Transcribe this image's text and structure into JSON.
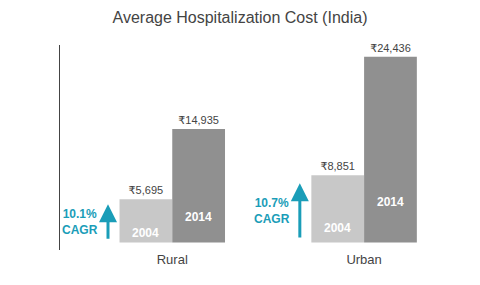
{
  "chart_data": {
    "type": "bar",
    "title": "Average Hospitalization Cost (India)",
    "categories": [
      "Rural",
      "Urban"
    ],
    "series": [
      {
        "name": "2004",
        "color": "#c8c8c8",
        "values": [
          5695,
          8851
        ],
        "value_labels": [
          "₹5,695",
          "₹8,851"
        ]
      },
      {
        "name": "2014",
        "color": "#909090",
        "values": [
          14935,
          24436
        ],
        "value_labels": [
          "₹14,935",
          "₹24,436"
        ]
      }
    ],
    "ylim": [
      -1000,
      26000
    ],
    "grid": false,
    "data_labels": true,
    "tick_labels": "x",
    "annotations": [
      {
        "category": "Rural",
        "text": [
          "10.1%",
          "CAGR"
        ],
        "color": "#1a9db8"
      },
      {
        "category": "Urban",
        "text": [
          "10.7%",
          "CAGR"
        ],
        "color": "#1a9db8"
      }
    ]
  }
}
